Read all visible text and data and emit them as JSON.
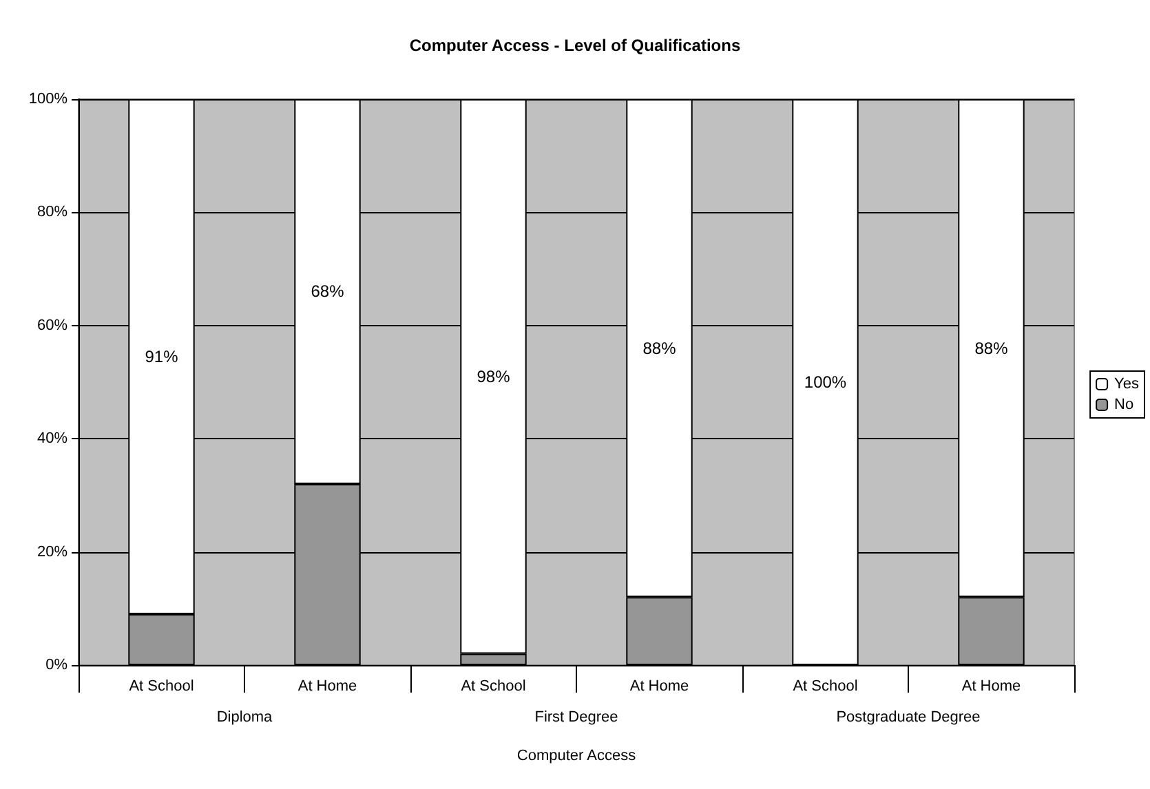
{
  "chart_data": {
    "type": "bar",
    "title": "Computer Access - Level of Qualifications",
    "xlabel": "Computer Access",
    "categories": [
      "At School",
      "At Home",
      "At School",
      "At Home",
      "At School",
      "At Home"
    ],
    "annotations": [
      "Diploma",
      "First Degree",
      "Postgraduate Degree"
    ],
    "stacked": true,
    "series": [
      {
        "name": "No",
        "color": "#969696",
        "values": [
          9,
          32,
          2,
          12,
          0,
          12
        ]
      },
      {
        "name": "Yes",
        "color": "#ffffff",
        "values": [
          91,
          68,
          98,
          88,
          100,
          88
        ],
        "value_labels": [
          "91%",
          "68%",
          "98%",
          "88%",
          "100%",
          "88%"
        ]
      }
    ],
    "ylim": [
      0,
      100
    ],
    "yticks": [
      {
        "value": 0,
        "label": "0%"
      },
      {
        "value": 20,
        "label": "20%"
      },
      {
        "value": 40,
        "label": "40%"
      },
      {
        "value": 60,
        "label": "60%"
      },
      {
        "value": 80,
        "label": "80%"
      },
      {
        "value": 100,
        "label": "100%"
      }
    ],
    "grid": "y",
    "legend": "right"
  }
}
